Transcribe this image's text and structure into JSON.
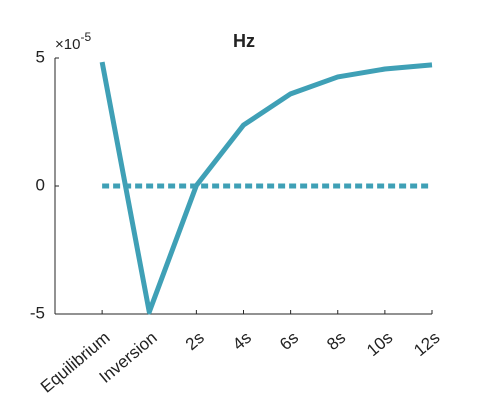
{
  "chart_data": {
    "type": "line",
    "title": "Hz",
    "y_multiplier": {
      "base": "×10",
      "exponent": "-5"
    },
    "categories": [
      "Equilibrium",
      "Inversion",
      "2s",
      "4s",
      "6s",
      "8s",
      "10s",
      "12s"
    ],
    "series": [
      {
        "color": "#3fa0b6",
        "style": "solid",
        "values": [
          4.84,
          -4.92,
          0.02,
          2.38,
          3.6,
          4.26,
          4.57,
          4.73
        ]
      },
      {
        "color": "#3fa0b6",
        "style": "dashed",
        "values": [
          0,
          0,
          0,
          0,
          0,
          0,
          0,
          0
        ]
      }
    ],
    "ylim": [
      -5,
      5
    ],
    "yticks": [
      -5,
      0,
      5
    ],
    "grid": false
  }
}
